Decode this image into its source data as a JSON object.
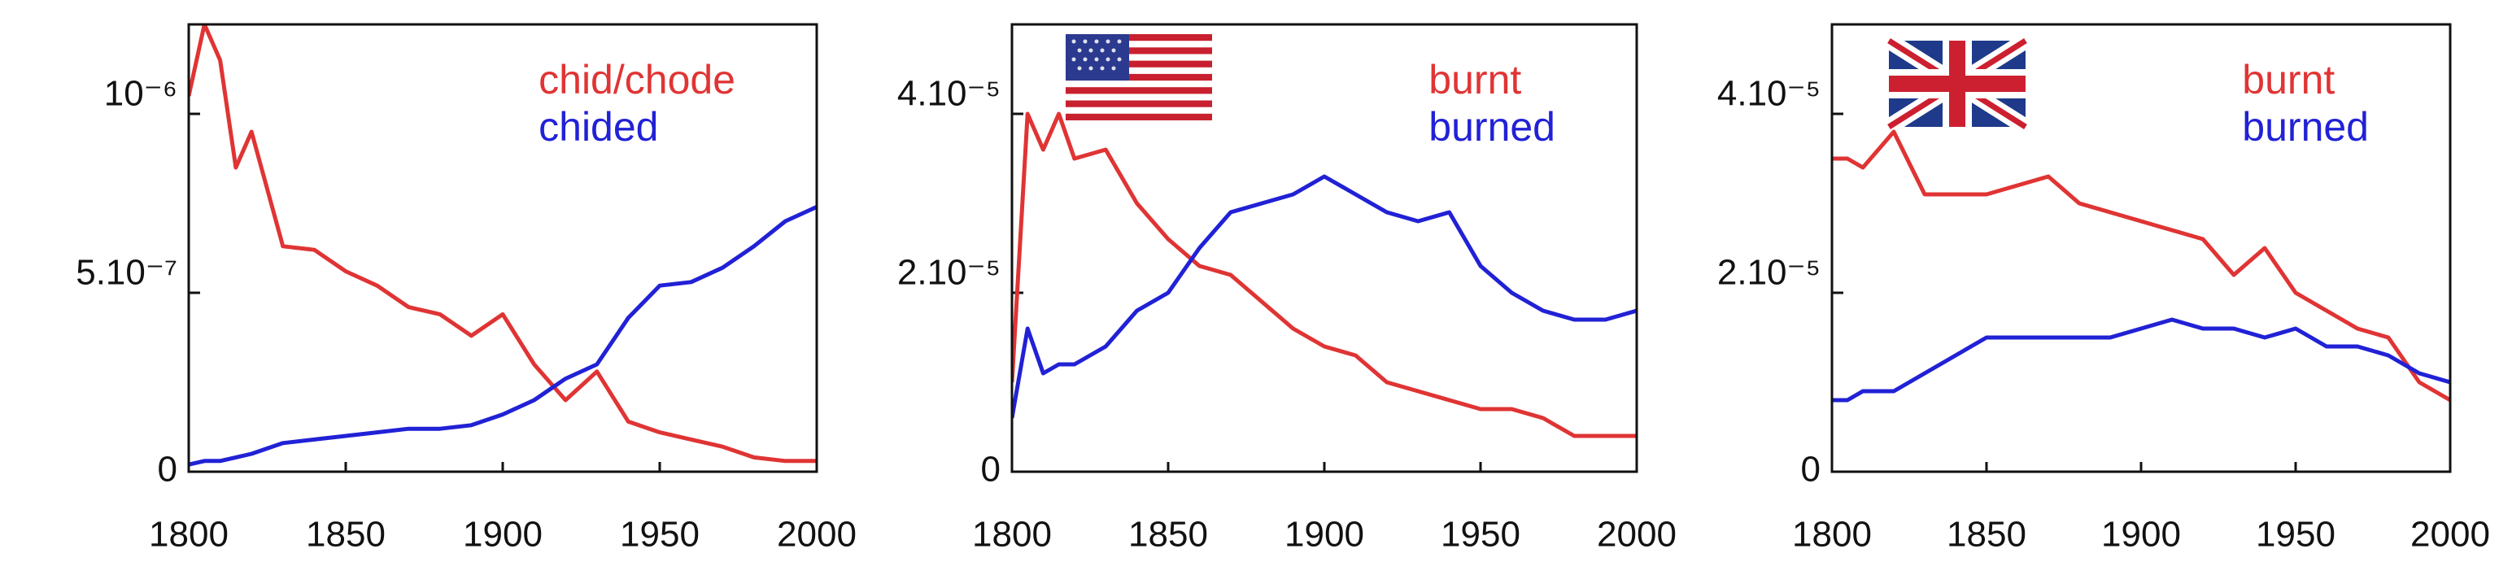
{
  "chart_data": [
    {
      "type": "line",
      "legend": "upper right",
      "x": [
        1800,
        1805,
        1810,
        1815,
        1820,
        1830,
        1840,
        1850,
        1860,
        1870,
        1880,
        1890,
        1900,
        1910,
        1920,
        1930,
        1940,
        1950,
        1960,
        1970,
        1980,
        1990,
        2000
      ],
      "series": [
        {
          "name": "chid/chode",
          "color": "#e03434",
          "values": [
            1.05e-06,
            1.25e-06,
            1.15e-06,
            8.5e-07,
            9.5e-07,
            6.3e-07,
            6.2e-07,
            5.6e-07,
            5.2e-07,
            4.6e-07,
            4.4e-07,
            3.8e-07,
            4.4e-07,
            3e-07,
            2e-07,
            2.8e-07,
            1.4e-07,
            1.1e-07,
            9e-08,
            7e-08,
            4e-08,
            3e-08,
            3e-08
          ]
        },
        {
          "name": "chided",
          "color": "#2121d6",
          "values": [
            2e-08,
            3e-08,
            3e-08,
            4e-08,
            5e-08,
            8e-08,
            9e-08,
            1e-07,
            1.1e-07,
            1.2e-07,
            1.2e-07,
            1.3e-07,
            1.6e-07,
            2e-07,
            2.6e-07,
            3e-07,
            4.3e-07,
            5.2e-07,
            5.3e-07,
            5.7e-07,
            6.3e-07,
            7e-07,
            7.4e-07
          ]
        }
      ],
      "xlim": [
        1800,
        2000
      ],
      "xticks": [
        1800,
        1850,
        1900,
        1950,
        2000
      ],
      "ylim": [
        0,
        1.25e-06
      ],
      "yticks": [
        0,
        {
          "value": 5e-07,
          "label": "5.10⁻⁷"
        },
        {
          "value": 1e-06,
          "label": "10⁻⁶"
        }
      ]
    },
    {
      "type": "line",
      "legend": "upper right",
      "x": [
        1800,
        1805,
        1810,
        1815,
        1820,
        1830,
        1840,
        1850,
        1860,
        1870,
        1880,
        1890,
        1900,
        1910,
        1920,
        1930,
        1940,
        1950,
        1960,
        1970,
        1980,
        1990,
        2000
      ],
      "series": [
        {
          "name": "burnt",
          "color": "#e03434",
          "values": [
            1e-05,
            4e-05,
            3.6e-05,
            4e-05,
            3.5e-05,
            3.6e-05,
            3e-05,
            2.6e-05,
            2.3e-05,
            2.2e-05,
            1.9e-05,
            1.6e-05,
            1.4e-05,
            1.3e-05,
            1e-05,
            9e-06,
            8e-06,
            7e-06,
            7e-06,
            6e-06,
            4e-06,
            4e-06,
            4e-06
          ]
        },
        {
          "name": "burned",
          "color": "#2121d6",
          "values": [
            6e-06,
            1.6e-05,
            1.1e-05,
            1.2e-05,
            1.2e-05,
            1.4e-05,
            1.8e-05,
            2e-05,
            2.5e-05,
            2.9e-05,
            3e-05,
            3.1e-05,
            3.3e-05,
            3.1e-05,
            2.9e-05,
            2.8e-05,
            2.9e-05,
            2.3e-05,
            2e-05,
            1.8e-05,
            1.7e-05,
            1.7e-05,
            1.8e-05
          ]
        }
      ],
      "xlim": [
        1800,
        2000
      ],
      "xticks": [
        1800,
        1850,
        1900,
        1950,
        2000
      ],
      "ylim": [
        0,
        5e-05
      ],
      "yticks": [
        0,
        {
          "value": 2e-05,
          "label": "2.10⁻⁵"
        },
        {
          "value": 4e-05,
          "label": "4.10⁻⁵"
        }
      ]
    },
    {
      "type": "line",
      "legend": "upper right",
      "x": [
        1800,
        1805,
        1810,
        1815,
        1820,
        1830,
        1840,
        1850,
        1860,
        1870,
        1880,
        1890,
        1900,
        1910,
        1920,
        1930,
        1940,
        1950,
        1960,
        1970,
        1980,
        1990,
        2000
      ],
      "series": [
        {
          "name": "burnt",
          "color": "#e03434",
          "values": [
            3.5e-05,
            3.5e-05,
            3.4e-05,
            3.6e-05,
            3.8e-05,
            3.1e-05,
            3.1e-05,
            3.1e-05,
            3.2e-05,
            3.3e-05,
            3e-05,
            2.9e-05,
            2.8e-05,
            2.7e-05,
            2.6e-05,
            2.2e-05,
            2.5e-05,
            2e-05,
            1.8e-05,
            1.6e-05,
            1.5e-05,
            1e-05,
            8e-06
          ]
        },
        {
          "name": "burned",
          "color": "#2121d6",
          "values": [
            8e-06,
            8e-06,
            9e-06,
            9e-06,
            9e-06,
            1.1e-05,
            1.3e-05,
            1.5e-05,
            1.5e-05,
            1.5e-05,
            1.5e-05,
            1.5e-05,
            1.6e-05,
            1.7e-05,
            1.6e-05,
            1.6e-05,
            1.5e-05,
            1.6e-05,
            1.4e-05,
            1.4e-05,
            1.3e-05,
            1.1e-05,
            1e-05
          ]
        }
      ],
      "xlim": [
        1800,
        2000
      ],
      "xticks": [
        1800,
        1850,
        1900,
        1950,
        2000
      ],
      "ylim": [
        0,
        5e-05
      ],
      "yticks": [
        0,
        {
          "value": 2e-05,
          "label": "2.10⁻⁵"
        },
        {
          "value": 4e-05,
          "label": "4.10⁻⁵"
        }
      ]
    }
  ]
}
